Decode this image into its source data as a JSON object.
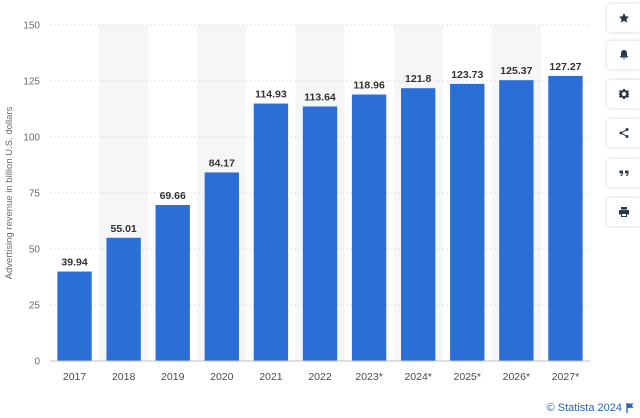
{
  "chart_data": {
    "type": "bar",
    "title": "",
    "xlabel": "",
    "ylabel": "Advertising revenue in billion U.S. dollars",
    "categories": [
      "2017",
      "2018",
      "2019",
      "2020",
      "2021",
      "2022",
      "2023*",
      "2024*",
      "2025*",
      "2026*",
      "2027*"
    ],
    "values": [
      39.94,
      55.01,
      69.66,
      84.17,
      114.93,
      113.64,
      118.96,
      121.8,
      123.73,
      125.37,
      127.27
    ],
    "value_labels": [
      "39.94",
      "55.01",
      "69.66",
      "84.17",
      "114.93",
      "113.64",
      "118.96",
      "121.8",
      "123.73",
      "125.37",
      "127.27"
    ],
    "yticks": [
      0,
      25,
      50,
      75,
      100,
      125,
      150
    ],
    "ylim": [
      0,
      150
    ],
    "grid": true,
    "bar_color": "#2b6fd6",
    "band_color": "#f6f6f6"
  },
  "toolbar": {
    "items": [
      {
        "name": "favorite-button",
        "icon": "star-icon"
      },
      {
        "name": "notification-button",
        "icon": "bell-icon"
      },
      {
        "name": "settings-button",
        "icon": "gear-icon"
      },
      {
        "name": "share-button",
        "icon": "share-icon"
      },
      {
        "name": "cite-button",
        "icon": "quote-icon"
      },
      {
        "name": "print-button",
        "icon": "printer-icon"
      }
    ]
  },
  "footer": {
    "credit": "© Statista 2024"
  }
}
